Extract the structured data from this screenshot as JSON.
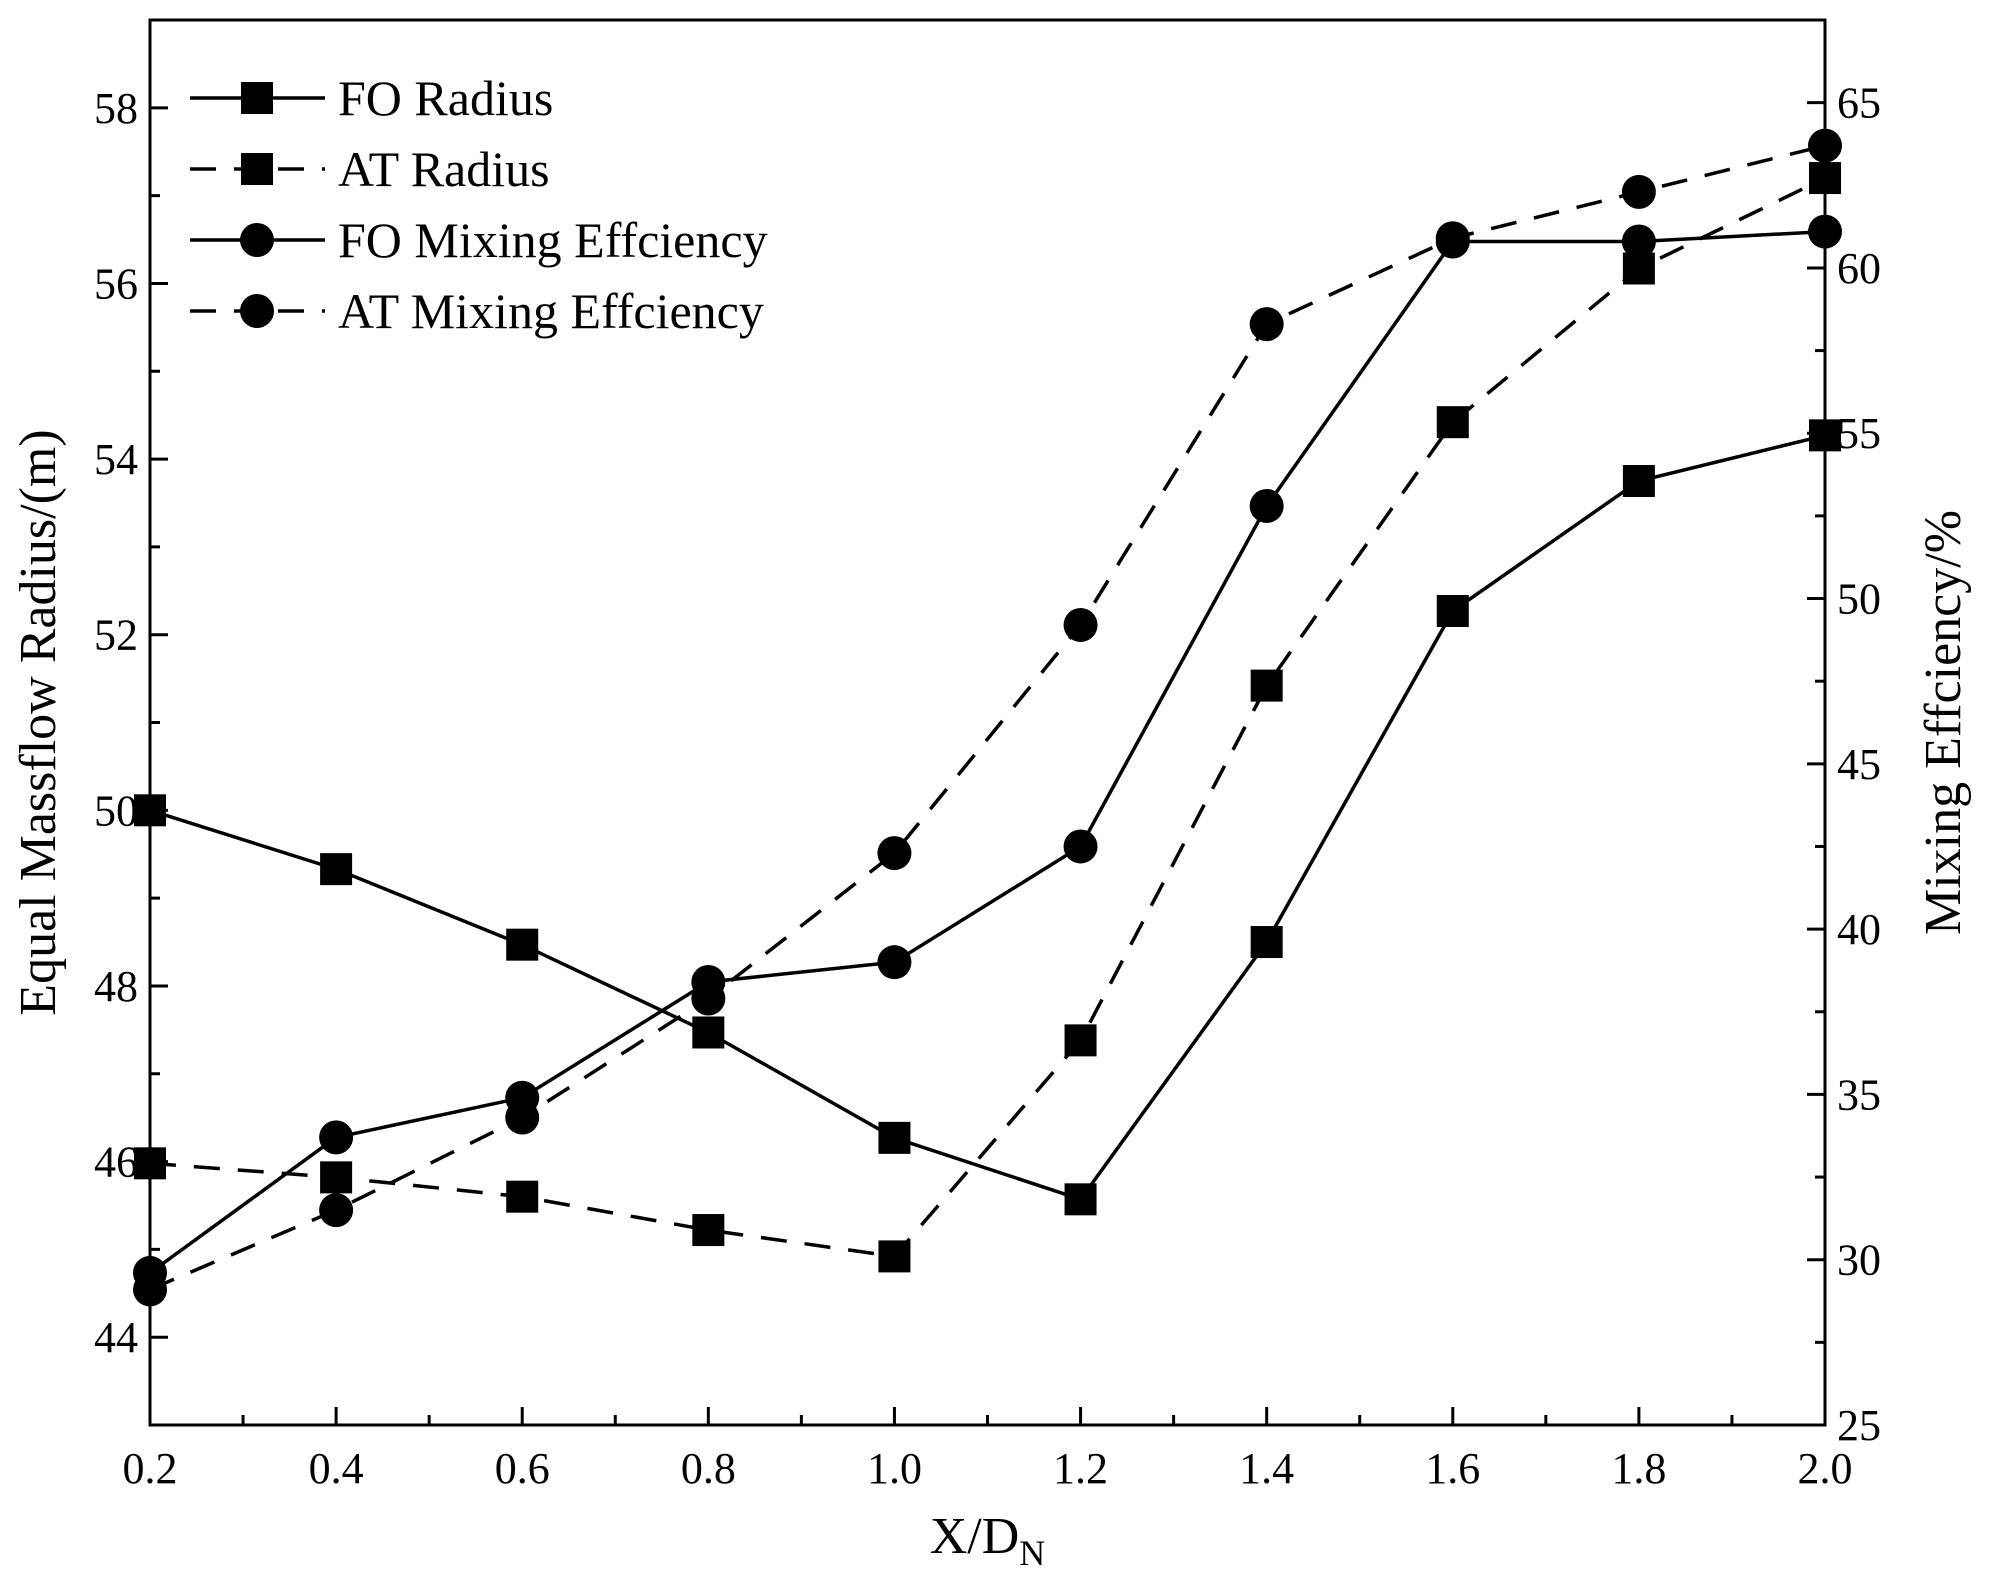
{
  "chart_data": {
    "type": "line",
    "title": "",
    "x": [
      0.2,
      0.4,
      0.6,
      0.8,
      1.0,
      1.2,
      1.4,
      1.6,
      1.8,
      2.0
    ],
    "xlim": [
      0.2,
      2.0
    ],
    "xticks": [
      "0.2",
      "0.4",
      "0.6",
      "0.8",
      "1.0",
      "1.2",
      "1.4",
      "1.6",
      "1.8",
      "2.0"
    ],
    "xlabel": {
      "main": "X/D",
      "sub": "N"
    },
    "ylabel_left": "Equal Massflow Radius/(m)",
    "ylim_left": [
      43,
      59
    ],
    "yticks_left": [
      "44",
      "46",
      "48",
      "50",
      "52",
      "54",
      "56",
      "58"
    ],
    "ylabel_right": "Mixing Effciency/%",
    "ylim_right": [
      25,
      67.5
    ],
    "yticks_right": [
      "25",
      "30",
      "35",
      "40",
      "45",
      "50",
      "55",
      "60",
      "65"
    ],
    "grid": false,
    "legend_position": "top-left",
    "series": [
      {
        "name": "FO Radius",
        "axis": "left",
        "marker": "square",
        "line": "solid",
        "values": [
          50.0,
          49.33,
          48.47,
          47.47,
          46.27,
          45.57,
          48.5,
          52.27,
          53.75,
          54.27
        ]
      },
      {
        "name": "AT Radius",
        "axis": "left",
        "marker": "square",
        "line": "dashed",
        "values": [
          45.98,
          45.82,
          45.6,
          45.22,
          44.92,
          47.38,
          51.42,
          54.42,
          56.17,
          57.2
        ]
      },
      {
        "name": "FO Mixing Effciency",
        "axis": "right",
        "marker": "circle",
        "line": "solid",
        "values": [
          29.6,
          33.7,
          34.9,
          38.4,
          39.0,
          42.5,
          52.8,
          60.8,
          60.8,
          61.1
        ]
      },
      {
        "name": "AT Mixing Effciency",
        "axis": "right",
        "marker": "circle",
        "line": "dashed",
        "values": [
          29.1,
          31.5,
          34.3,
          37.9,
          42.3,
          49.2,
          58.3,
          60.9,
          62.3,
          63.7
        ]
      }
    ]
  }
}
